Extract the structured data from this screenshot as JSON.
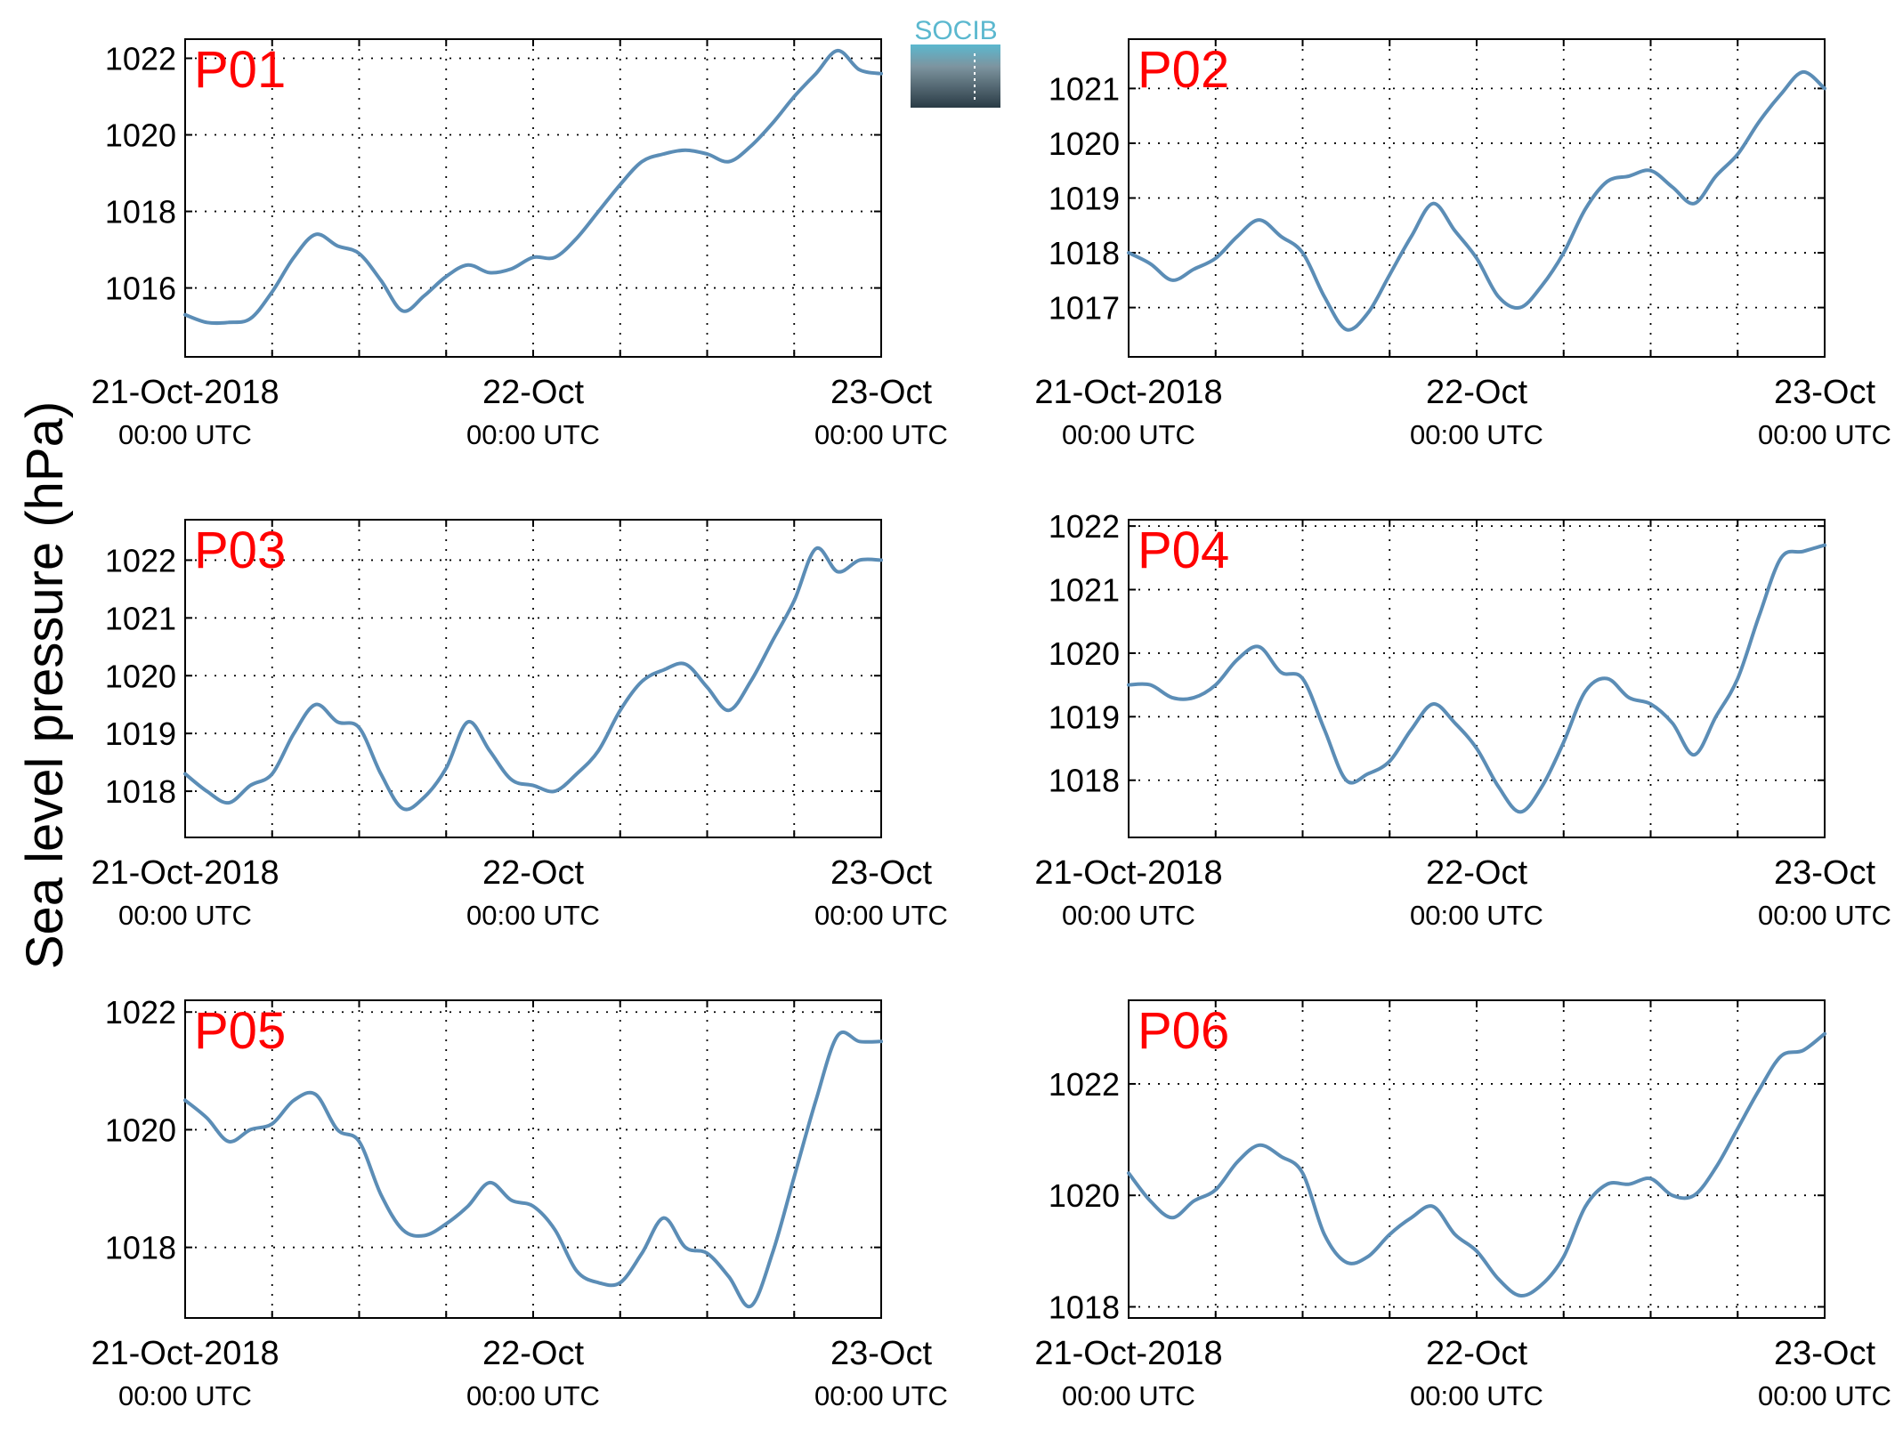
{
  "ylabel": "Sea level pressure (hPa)",
  "logo": {
    "text": "SOCIB",
    "colors": {
      "top": "#5bb8cf",
      "mid": "#7d949f",
      "bottom": "#2a3b45"
    }
  },
  "colors": {
    "line": "#5b8db6",
    "panel_label": "#ff0000",
    "grid": "#000000"
  },
  "xticks": {
    "major": [
      {
        "date": "21-Oct-2018",
        "line1": "21-Oct-2018",
        "line2": "00:00 UTC"
      },
      {
        "date": "22-Oct-2018",
        "line1": "22-Oct",
        "line2": "00:00 UTC"
      },
      {
        "date": "23-Oct-2018",
        "line1": "23-Oct",
        "line2": "00:00 UTC"
      }
    ],
    "gridlines": [
      "21-Oct 00:00",
      "21-Oct 06:00",
      "21-Oct 12:00",
      "21-Oct 18:00",
      "22-Oct 00:00",
      "22-Oct 06:00",
      "22-Oct 12:00",
      "22-Oct 18:00",
      "23-Oct 00:00"
    ]
  },
  "chart_data": [
    {
      "type": "line",
      "panel": "P01",
      "x": [
        "21-Oct 00:00",
        "21-Oct 01:30",
        "21-Oct 03:00",
        "21-Oct 04:30",
        "21-Oct 06:00",
        "21-Oct 07:30",
        "21-Oct 09:00",
        "21-Oct 10:30",
        "21-Oct 12:00",
        "21-Oct 13:30",
        "21-Oct 15:00",
        "21-Oct 16:30",
        "21-Oct 18:00",
        "21-Oct 19:30",
        "21-Oct 21:00",
        "21-Oct 22:30",
        "22-Oct 00:00",
        "22-Oct 01:30",
        "22-Oct 03:00",
        "22-Oct 04:30",
        "22-Oct 06:00",
        "22-Oct 07:30",
        "22-Oct 09:00",
        "22-Oct 10:30",
        "22-Oct 12:00",
        "22-Oct 13:30",
        "22-Oct 15:00",
        "22-Oct 16:30",
        "22-Oct 18:00",
        "22-Oct 19:30",
        "22-Oct 21:00",
        "22-Oct 22:30",
        "23-Oct 00:00"
      ],
      "values": [
        1015.3,
        1015.1,
        1015.1,
        1015.2,
        1015.9,
        1016.8,
        1017.4,
        1017.1,
        1016.9,
        1016.2,
        1015.4,
        1015.8,
        1016.3,
        1016.6,
        1016.4,
        1016.5,
        1016.8,
        1016.8,
        1017.3,
        1018.0,
        1018.7,
        1019.3,
        1019.5,
        1019.6,
        1019.5,
        1019.3,
        1019.7,
        1020.3,
        1021.0,
        1021.6,
        1022.2,
        1021.7,
        1021.6
      ],
      "ylim": [
        1014.2,
        1022.5
      ],
      "yticks": [
        1016,
        1018,
        1020,
        1022
      ]
    },
    {
      "type": "line",
      "panel": "P02",
      "x": [
        "21-Oct 00:00",
        "21-Oct 01:30",
        "21-Oct 03:00",
        "21-Oct 04:30",
        "21-Oct 06:00",
        "21-Oct 07:30",
        "21-Oct 09:00",
        "21-Oct 10:30",
        "21-Oct 12:00",
        "21-Oct 13:30",
        "21-Oct 15:00",
        "21-Oct 16:30",
        "21-Oct 18:00",
        "21-Oct 19:30",
        "21-Oct 21:00",
        "21-Oct 22:30",
        "22-Oct 00:00",
        "22-Oct 01:30",
        "22-Oct 03:00",
        "22-Oct 04:30",
        "22-Oct 06:00",
        "22-Oct 07:30",
        "22-Oct 09:00",
        "22-Oct 10:30",
        "22-Oct 12:00",
        "22-Oct 13:30",
        "22-Oct 15:00",
        "22-Oct 16:30",
        "22-Oct 18:00",
        "22-Oct 19:30",
        "22-Oct 21:00",
        "22-Oct 22:30",
        "23-Oct 00:00"
      ],
      "values": [
        1018.0,
        1017.8,
        1017.5,
        1017.7,
        1017.9,
        1018.3,
        1018.6,
        1018.3,
        1018.0,
        1017.2,
        1016.6,
        1016.9,
        1017.6,
        1018.3,
        1018.9,
        1018.4,
        1017.9,
        1017.2,
        1017.0,
        1017.4,
        1018.0,
        1018.8,
        1019.3,
        1019.4,
        1019.5,
        1019.2,
        1018.9,
        1019.4,
        1019.8,
        1020.4,
        1020.9,
        1021.3,
        1021.0
      ],
      "ylim": [
        1016.1,
        1021.9
      ],
      "yticks": [
        1017,
        1018,
        1019,
        1020,
        1021
      ]
    },
    {
      "type": "line",
      "panel": "P03",
      "x": [
        "21-Oct 00:00",
        "21-Oct 01:30",
        "21-Oct 03:00",
        "21-Oct 04:30",
        "21-Oct 06:00",
        "21-Oct 07:30",
        "21-Oct 09:00",
        "21-Oct 10:30",
        "21-Oct 12:00",
        "21-Oct 13:30",
        "21-Oct 15:00",
        "21-Oct 16:30",
        "21-Oct 18:00",
        "21-Oct 19:30",
        "21-Oct 21:00",
        "21-Oct 22:30",
        "22-Oct 00:00",
        "22-Oct 01:30",
        "22-Oct 03:00",
        "22-Oct 04:30",
        "22-Oct 06:00",
        "22-Oct 07:30",
        "22-Oct 09:00",
        "22-Oct 10:30",
        "22-Oct 12:00",
        "22-Oct 13:30",
        "22-Oct 15:00",
        "22-Oct 16:30",
        "22-Oct 18:00",
        "22-Oct 19:30",
        "22-Oct 21:00",
        "22-Oct 22:30",
        "23-Oct 00:00"
      ],
      "values": [
        1018.3,
        1018.0,
        1017.8,
        1018.1,
        1018.3,
        1019.0,
        1019.5,
        1019.2,
        1019.1,
        1018.3,
        1017.7,
        1017.9,
        1018.4,
        1019.2,
        1018.7,
        1018.2,
        1018.1,
        1018.0,
        1018.3,
        1018.7,
        1019.4,
        1019.9,
        1020.1,
        1020.2,
        1019.8,
        1019.4,
        1019.9,
        1020.6,
        1021.3,
        1022.2,
        1021.8,
        1022.0,
        1022.0
      ],
      "ylim": [
        1017.2,
        1022.7
      ],
      "yticks": [
        1018,
        1019,
        1020,
        1021,
        1022
      ]
    },
    {
      "type": "line",
      "panel": "P04",
      "x": [
        "21-Oct 00:00",
        "21-Oct 01:30",
        "21-Oct 03:00",
        "21-Oct 04:30",
        "21-Oct 06:00",
        "21-Oct 07:30",
        "21-Oct 09:00",
        "21-Oct 10:30",
        "21-Oct 12:00",
        "21-Oct 13:30",
        "21-Oct 15:00",
        "21-Oct 16:30",
        "21-Oct 18:00",
        "21-Oct 19:30",
        "21-Oct 21:00",
        "21-Oct 22:30",
        "22-Oct 00:00",
        "22-Oct 01:30",
        "22-Oct 03:00",
        "22-Oct 04:30",
        "22-Oct 06:00",
        "22-Oct 07:30",
        "22-Oct 09:00",
        "22-Oct 10:30",
        "22-Oct 12:00",
        "22-Oct 13:30",
        "22-Oct 15:00",
        "22-Oct 16:30",
        "22-Oct 18:00",
        "22-Oct 19:30",
        "22-Oct 21:00",
        "22-Oct 22:30",
        "23-Oct 00:00"
      ],
      "values": [
        1019.5,
        1019.5,
        1019.3,
        1019.3,
        1019.5,
        1019.9,
        1020.1,
        1019.7,
        1019.6,
        1018.8,
        1018.0,
        1018.1,
        1018.3,
        1018.8,
        1019.2,
        1018.9,
        1018.5,
        1017.9,
        1017.5,
        1017.9,
        1018.6,
        1019.4,
        1019.6,
        1019.3,
        1019.2,
        1018.9,
        1018.4,
        1019.0,
        1019.6,
        1020.6,
        1021.5,
        1021.6,
        1021.7
      ],
      "ylim": [
        1017.1,
        1022.1
      ],
      "yticks": [
        1018,
        1019,
        1020,
        1021,
        1022
      ]
    },
    {
      "type": "line",
      "panel": "P05",
      "x": [
        "21-Oct 00:00",
        "21-Oct 01:30",
        "21-Oct 03:00",
        "21-Oct 04:30",
        "21-Oct 06:00",
        "21-Oct 07:30",
        "21-Oct 09:00",
        "21-Oct 10:30",
        "21-Oct 12:00",
        "21-Oct 13:30",
        "21-Oct 15:00",
        "21-Oct 16:30",
        "21-Oct 18:00",
        "21-Oct 19:30",
        "21-Oct 21:00",
        "21-Oct 22:30",
        "22-Oct 00:00",
        "22-Oct 01:30",
        "22-Oct 03:00",
        "22-Oct 04:30",
        "22-Oct 06:00",
        "22-Oct 07:30",
        "22-Oct 09:00",
        "22-Oct 10:30",
        "22-Oct 12:00",
        "22-Oct 13:30",
        "22-Oct 15:00",
        "22-Oct 16:30",
        "22-Oct 18:00",
        "22-Oct 19:30",
        "22-Oct 21:00",
        "22-Oct 22:30",
        "23-Oct 00:00"
      ],
      "values": [
        1020.5,
        1020.2,
        1019.8,
        1020.0,
        1020.1,
        1020.5,
        1020.6,
        1020.0,
        1019.8,
        1018.9,
        1018.3,
        1018.2,
        1018.4,
        1018.7,
        1019.1,
        1018.8,
        1018.7,
        1018.3,
        1017.6,
        1017.4,
        1017.4,
        1017.9,
        1018.5,
        1018.0,
        1017.9,
        1017.5,
        1017.0,
        1017.9,
        1019.2,
        1020.5,
        1021.6,
        1021.5,
        1021.5
      ],
      "ylim": [
        1016.8,
        1022.2
      ],
      "yticks": [
        1018,
        1020,
        1022
      ]
    },
    {
      "type": "line",
      "panel": "P06",
      "x": [
        "21-Oct 00:00",
        "21-Oct 01:30",
        "21-Oct 03:00",
        "21-Oct 04:30",
        "21-Oct 06:00",
        "21-Oct 07:30",
        "21-Oct 09:00",
        "21-Oct 10:30",
        "21-Oct 12:00",
        "21-Oct 13:30",
        "21-Oct 15:00",
        "21-Oct 16:30",
        "21-Oct 18:00",
        "21-Oct 19:30",
        "21-Oct 21:00",
        "21-Oct 22:30",
        "22-Oct 00:00",
        "22-Oct 01:30",
        "22-Oct 03:00",
        "22-Oct 04:30",
        "22-Oct 06:00",
        "22-Oct 07:30",
        "22-Oct 09:00",
        "22-Oct 10:30",
        "22-Oct 12:00",
        "22-Oct 13:30",
        "22-Oct 15:00",
        "22-Oct 16:30",
        "22-Oct 18:00",
        "22-Oct 19:30",
        "22-Oct 21:00",
        "22-Oct 22:30",
        "23-Oct 00:00"
      ],
      "values": [
        1020.4,
        1019.9,
        1019.6,
        1019.9,
        1020.1,
        1020.6,
        1020.9,
        1020.7,
        1020.4,
        1019.3,
        1018.8,
        1018.9,
        1019.3,
        1019.6,
        1019.8,
        1019.3,
        1019.0,
        1018.5,
        1018.2,
        1018.4,
        1018.9,
        1019.8,
        1020.2,
        1020.2,
        1020.3,
        1020.0,
        1020.0,
        1020.5,
        1021.2,
        1021.9,
        1022.5,
        1022.6,
        1022.9
      ],
      "ylim": [
        1017.8,
        1023.5
      ],
      "yticks": [
        1018,
        1020,
        1022
      ]
    }
  ]
}
